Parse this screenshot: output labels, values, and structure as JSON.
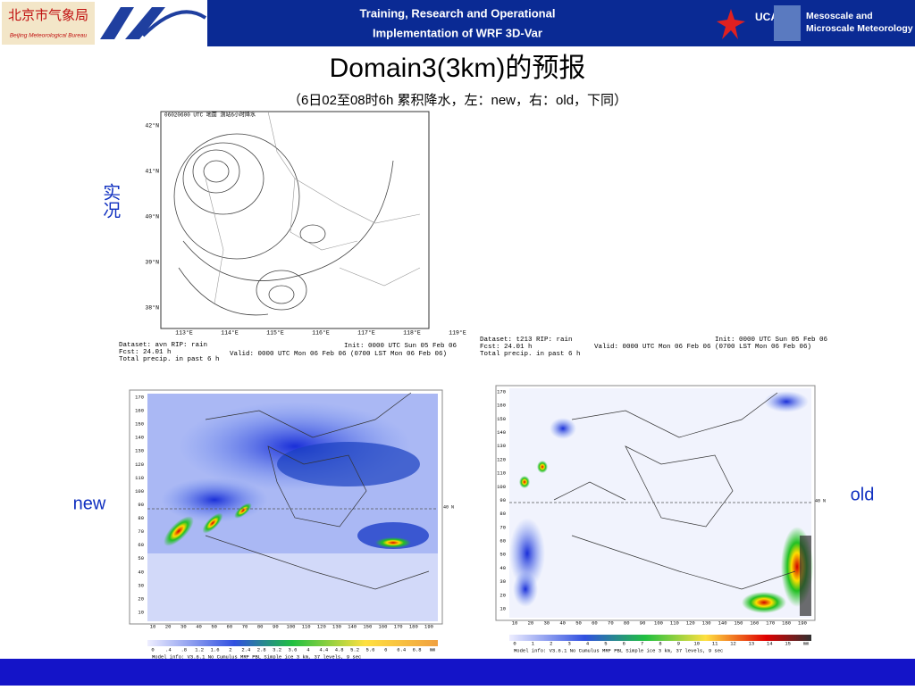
{
  "header": {
    "left_logo_text": "北京市气象局",
    "left_logo_subtext": "Beijing Meteorological Bureau",
    "center_lines": [
      "Training, Research and Operational",
      "Implementation of WRF 3D-Var"
    ],
    "right_logo_text": "UCAR",
    "right_lines": [
      "Mesoscale and",
      "Microscale Meteorology"
    ]
  },
  "title": "Domain3(3km)的预报",
  "subtitle": "（6日02至08时6h 累积降水，左：new，右：old，下同）",
  "labels": {
    "observed": "实况",
    "new": "new",
    "old": "old"
  },
  "observed_map": {
    "heading": "06020600 UTC 地面 测站6小时降水",
    "lat_labels": [
      "42°N",
      "41°N",
      "40°N",
      "39°N",
      "38°N"
    ],
    "lon_labels": [
      "113°E",
      "114°E",
      "115°E",
      "116°E",
      "117°E",
      "118°E",
      "119°E"
    ]
  },
  "captions": {
    "left": [
      "Dataset: avn   RIP: rain",
      "Fcst:   24.01 h",
      "Total precip. in past 6 h"
    ],
    "left_right": [
      "Init: 0000 UTC Sun 05 Feb 06",
      "Valid: 0000 UTC Mon 06 Feb 06 (0700 LST Mon 06 Feb 06)"
    ],
    "right": [
      "Dataset: t213   RIP: rain",
      "Fcst:   24.01 h",
      "Total precip. in past 6 h"
    ],
    "right_right": [
      "Init: 0000 UTC Sun 05 Feb 06",
      "Valid: 0000 UTC Mon 06 Feb 06 (0700 LST Mon 06 Feb 06)"
    ]
  },
  "new_map": {
    "y_labels": [
      "170",
      "160",
      "150",
      "140",
      "130",
      "120",
      "110",
      "100",
      "90",
      "80",
      "70",
      "60",
      "50",
      "40",
      "30",
      "20",
      "10"
    ],
    "x_labels": [
      "10",
      "20",
      "30",
      "40",
      "50",
      "60",
      "70",
      "80",
      "90",
      "100",
      "110",
      "120",
      "130",
      "140",
      "150",
      "160",
      "170",
      "180",
      "190"
    ],
    "lat_line_label": "40 N",
    "colorbar_labels": [
      "0",
      ".4",
      ".8",
      "1.2",
      "1.6",
      "2",
      "2.4",
      "2.8",
      "3.2",
      "3.6",
      "4",
      "4.4",
      "4.8",
      "5.2",
      "5.6",
      "6",
      "6.4",
      "6.8",
      "mm"
    ],
    "model_info": "Model info: V3.6.1 No Cumulus MRF PBL    Simple ice    3 km,  37 levels,    9 sec"
  },
  "old_map": {
    "y_labels": [
      "170",
      "160",
      "150",
      "140",
      "130",
      "120",
      "110",
      "100",
      "90",
      "80",
      "70",
      "60",
      "50",
      "40",
      "30",
      "20",
      "10"
    ],
    "x_labels": [
      "10",
      "20",
      "30",
      "40",
      "50",
      "60",
      "70",
      "80",
      "90",
      "100",
      "110",
      "120",
      "130",
      "140",
      "150",
      "160",
      "170",
      "180",
      "190"
    ],
    "lat_line_label": "40 N",
    "colorbar_labels": [
      "0",
      "1",
      "2",
      "3",
      "4",
      "5",
      "6",
      "7",
      "8",
      "9",
      "10",
      "11",
      "12",
      "13",
      "14",
      "15",
      "mm"
    ],
    "model_info": "Model info: V3.6.1 No Cumulus MRF PBL    Simple ice    3 km,  37 levels,    9 sec"
  }
}
